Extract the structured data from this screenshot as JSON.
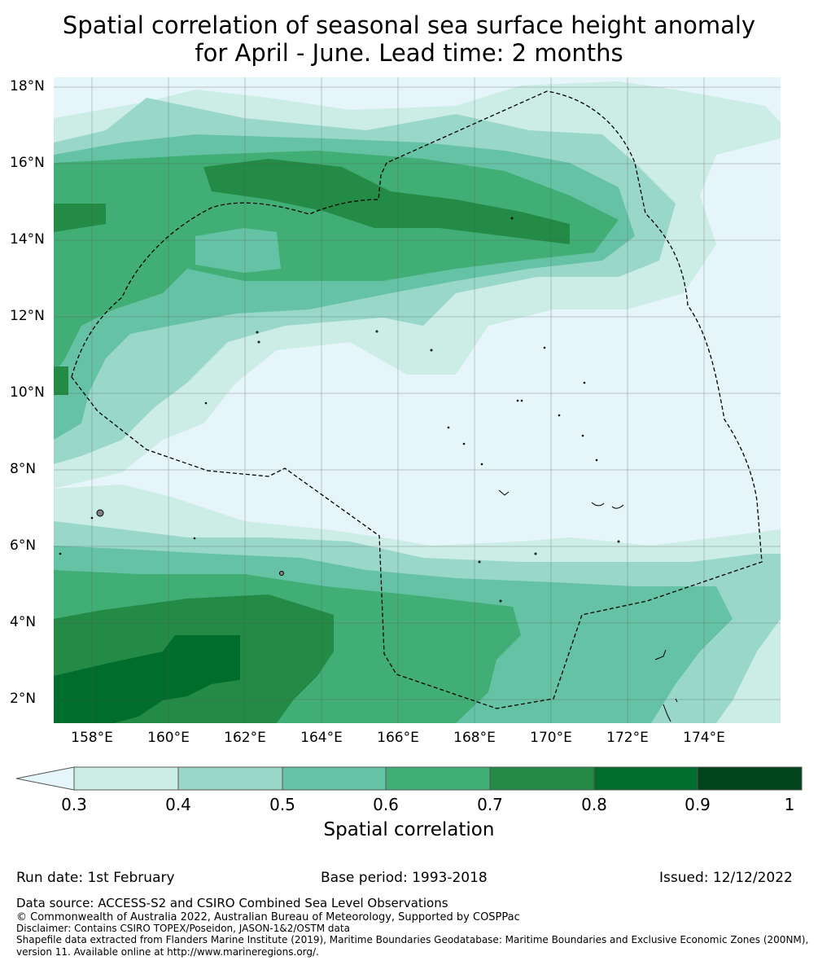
{
  "title_line1": "Spatial correlation of seasonal sea surface height anomaly",
  "title_line2": "for April - June. Lead time: 2 months",
  "map": {
    "lat_labels": [
      "18°N",
      "16°N",
      "14°N",
      "12°N",
      "10°N",
      "8°N",
      "6°N",
      "4°N",
      "2°N"
    ],
    "lon_labels": [
      "158°E",
      "160°E",
      "162°E",
      "164°E",
      "166°E",
      "168°E",
      "170°E",
      "172°E",
      "174°E"
    ],
    "colors": {
      "below": "#e5f5f9",
      "b1": "#ccece6",
      "b2": "#99d8c9",
      "b3": "#66c2a4",
      "b4": "#41ae76",
      "b5": "#238b45",
      "b6": "#006d2c",
      "b7": "#00441b",
      "land": "#808080",
      "eez": "#000000"
    }
  },
  "colorbar": {
    "ticks": [
      "0.3",
      "0.4",
      "0.5",
      "0.6",
      "0.7",
      "0.8",
      "0.9",
      "1"
    ],
    "title": "Spatial correlation"
  },
  "footer": {
    "run_date": "Run date: 1st February",
    "base_period": "Base period: 1993-2018",
    "issued": "Issued: 12/12/2022",
    "data_source": "Data source: ACCESS-S2 and CSIRO Combined Sea Level Observations",
    "copyright": "© Commonwealth of Australia 2022, Australian Bureau of Meteorology, Supported by COSPPac",
    "disclaimer": "Disclaimer: Contains CSIRO TOPEX/Poseidon, JASON-1&2/OSTM data",
    "shapefile1": "Shapefile data extracted from Flanders Marine Institute (2019), Maritime Boundaries Geodatabase: Maritime Boundaries and Exclusive Economic Zones (200NM),",
    "shapefile2": "version 11. Available online at http://www.marineregions.org/."
  }
}
